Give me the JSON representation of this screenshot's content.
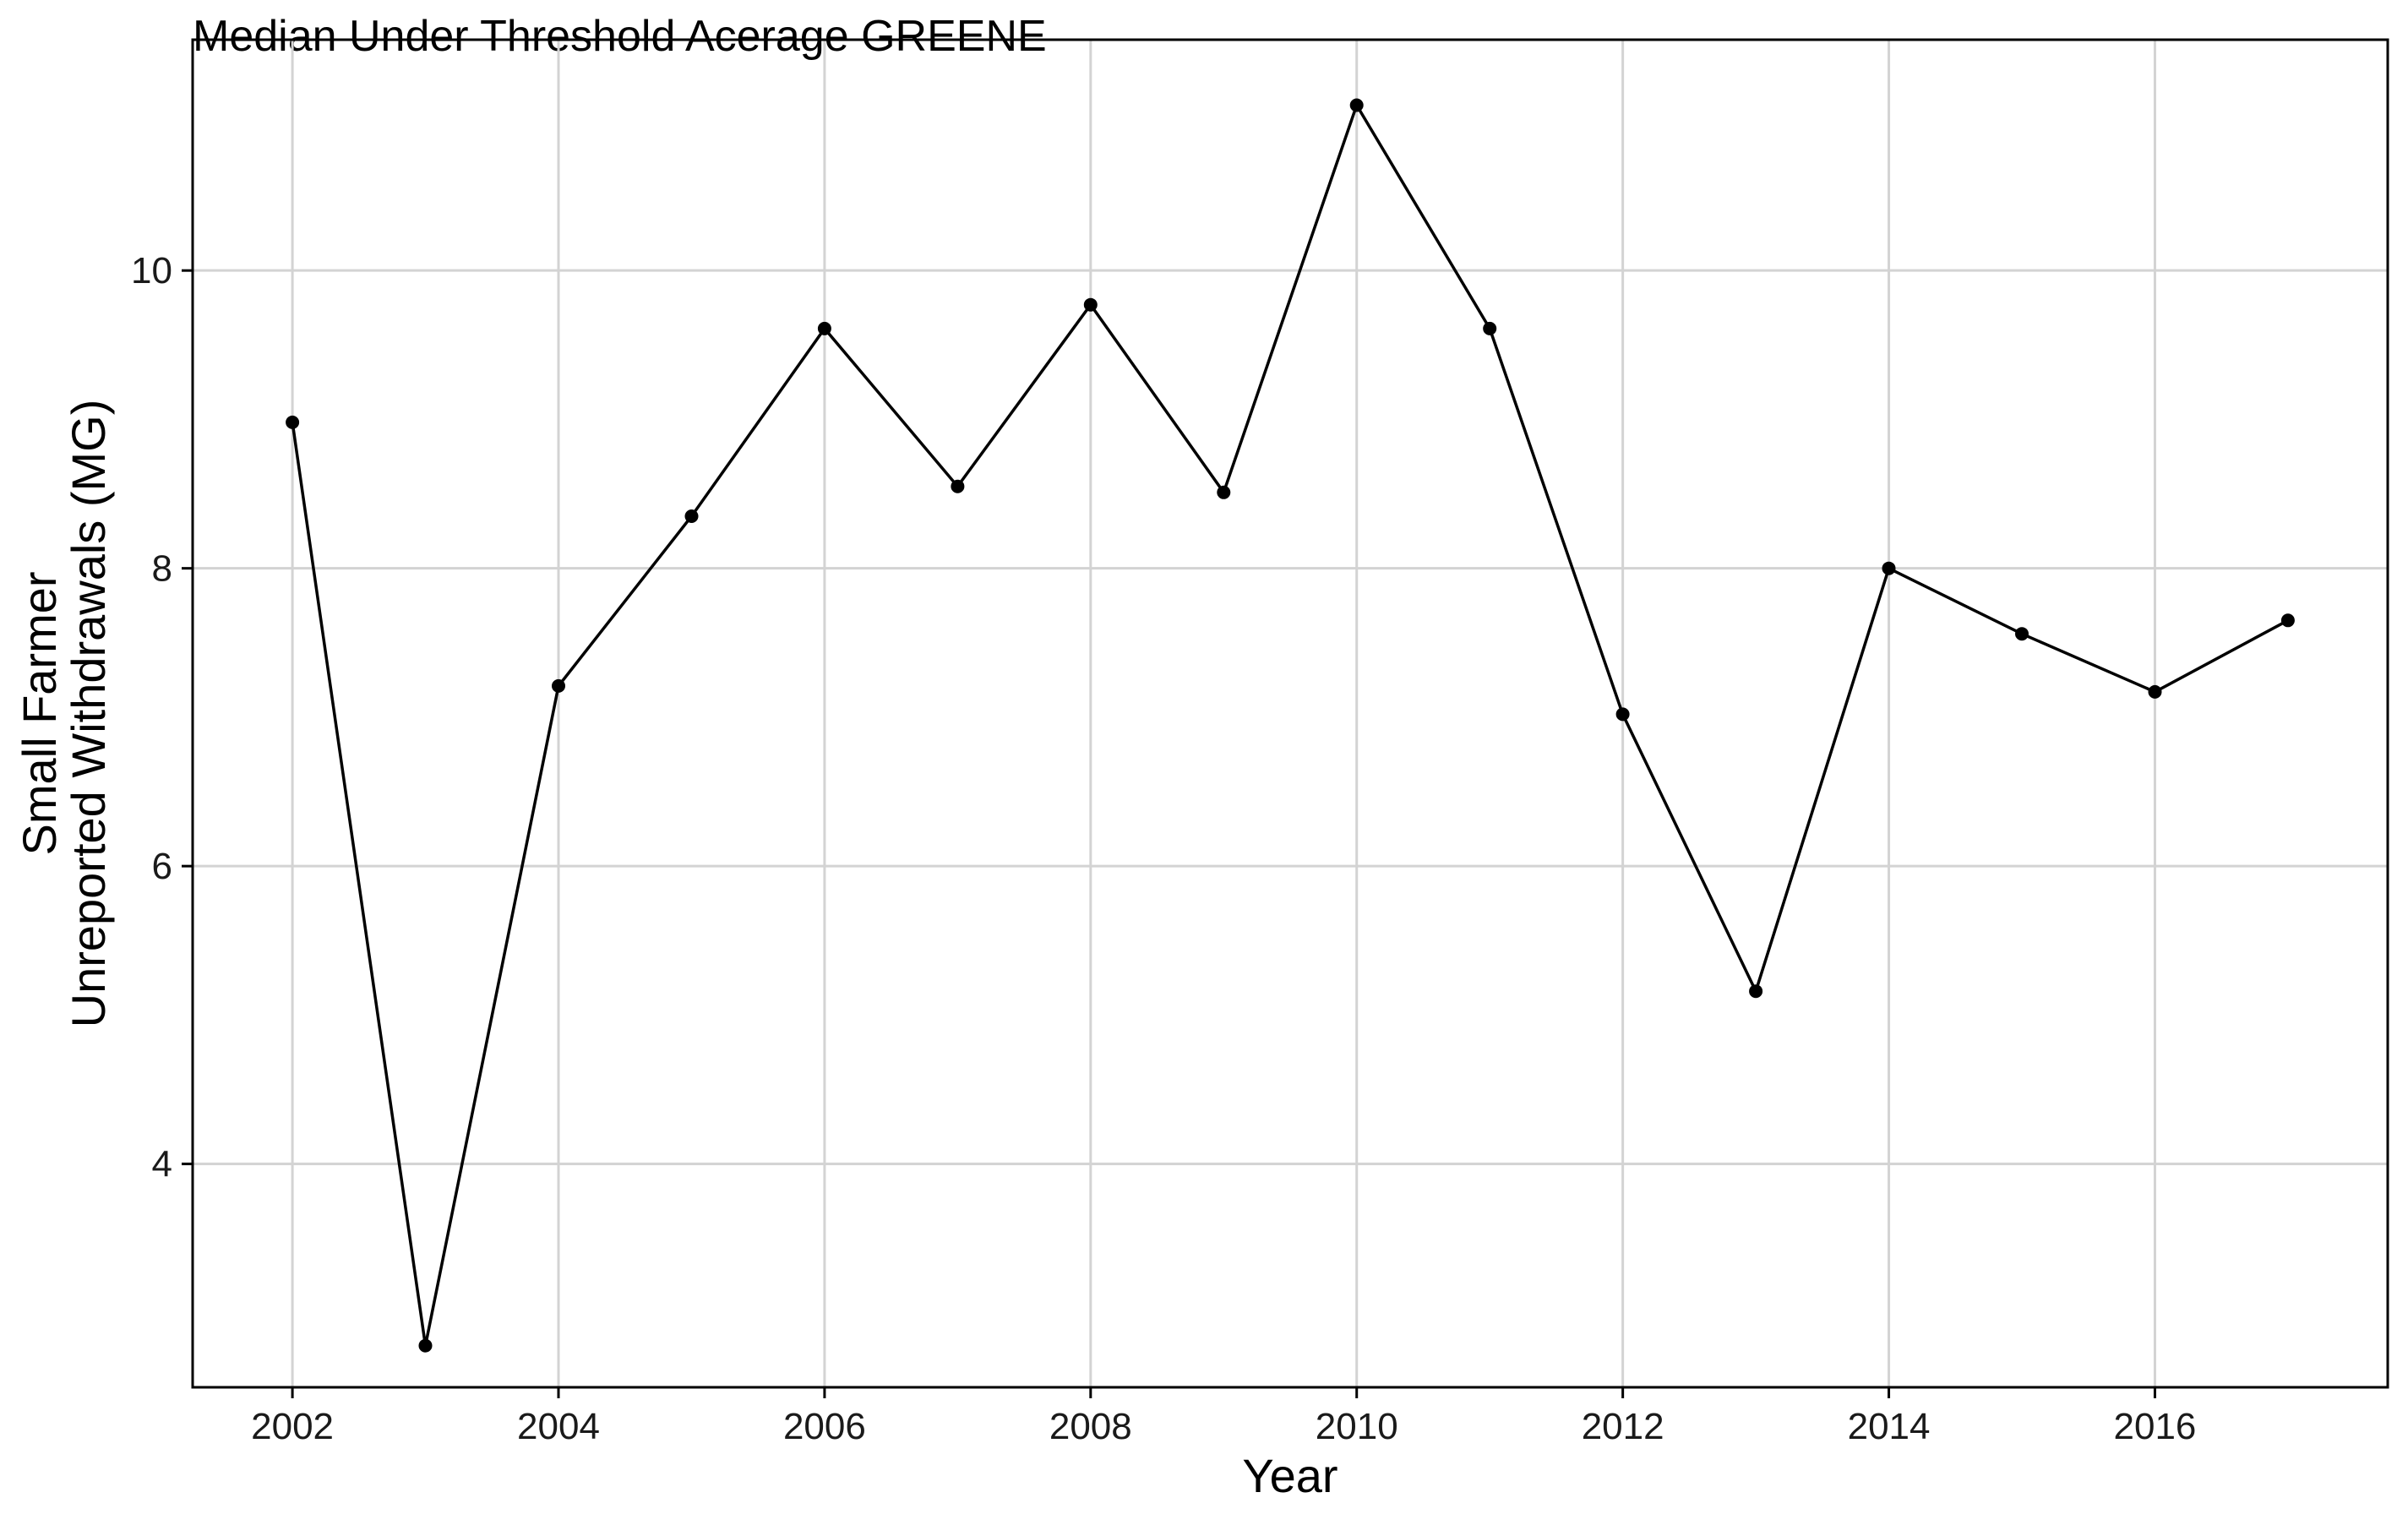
{
  "chart_data": {
    "type": "line",
    "title": "Median Under Threshold Acerage GREENE",
    "xlabel": "Year",
    "ylabel_line1": "Small Farmer",
    "ylabel_line2": "Unreported Withdrawals (MG)",
    "xlim": [
      2001.25,
      2017.75
    ],
    "ylim": [
      2.5,
      11.55
    ],
    "x_ticks": [
      2002,
      2004,
      2006,
      2008,
      2010,
      2012,
      2014,
      2016
    ],
    "y_ticks": [
      4,
      6,
      8,
      10
    ],
    "grid": true,
    "series": [
      {
        "x": [
          2002,
          2003,
          2004,
          2005,
          2006,
          2007,
          2008,
          2009,
          2010,
          2011,
          2012,
          2013,
          2014,
          2015,
          2016,
          2017
        ],
        "y": [
          8.98,
          2.78,
          7.21,
          8.35,
          9.61,
          8.55,
          9.77,
          8.51,
          11.11,
          9.61,
          7.02,
          5.16,
          8.0,
          7.56,
          7.17,
          7.65
        ]
      }
    ]
  }
}
